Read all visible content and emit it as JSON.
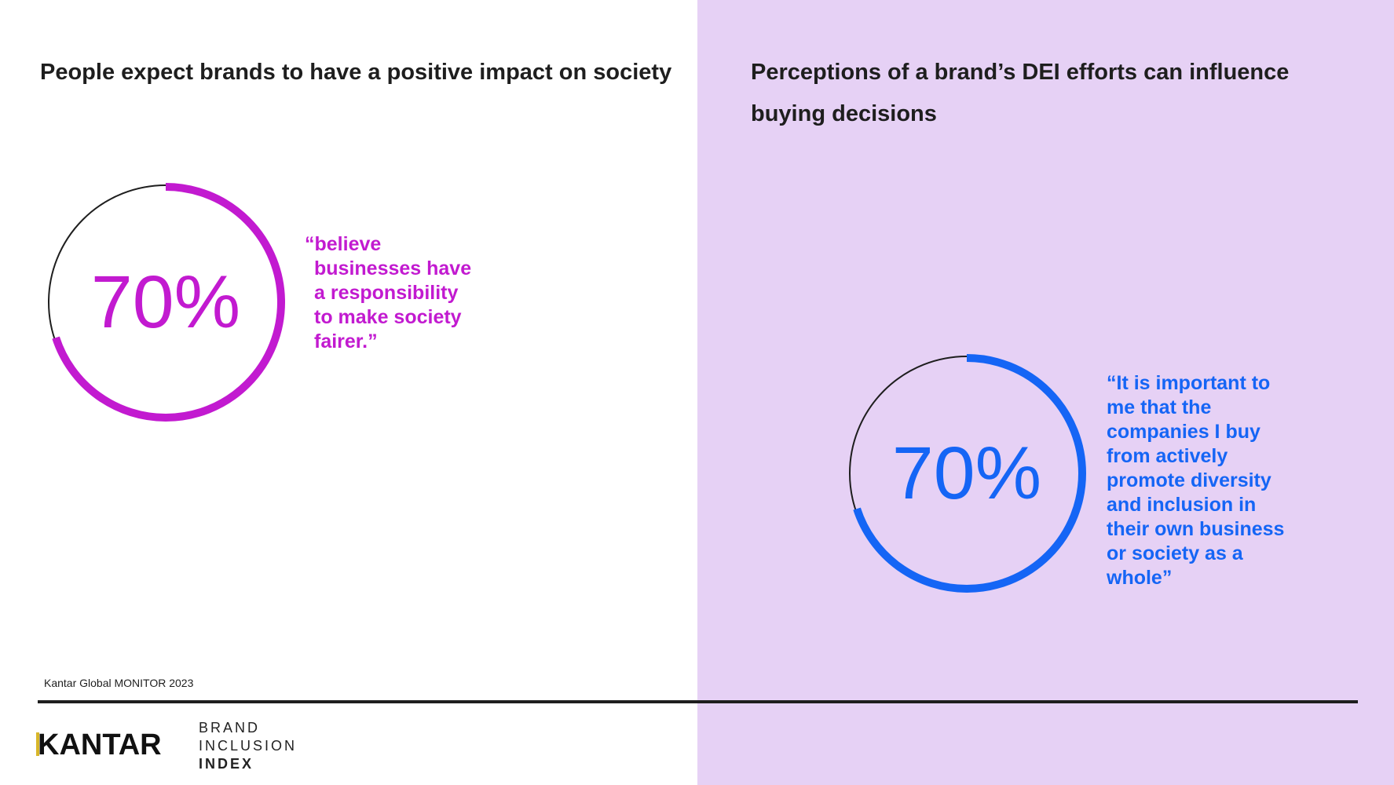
{
  "left": {
    "heading": "People expect brands to have a positive impact on society",
    "stat": {
      "value": "70%",
      "fraction": 0.7,
      "color": "#c21ad0"
    },
    "quote_lines": [
      "“believe",
      "businesses have",
      "a responsibility",
      "to make society",
      "fairer.”"
    ]
  },
  "right": {
    "background": "#e6d1f5",
    "heading": "Perceptions of a brand’s DEI efforts can influence buying decisions",
    "stat": {
      "value": "70%",
      "fraction": 0.7,
      "color": "#1565f5"
    },
    "quote_lines": [
      "“It is important to",
      "me that the",
      "companies I buy",
      "from actively",
      "promote diversity",
      "and inclusion in",
      "their own business",
      "or society as a",
      "whole”"
    ]
  },
  "footer": {
    "source": "Kantar Global MONITOR 2023",
    "logo": "KANTAR",
    "subbrand": [
      "BRAND",
      "INCLUSION",
      "INDEX"
    ]
  }
}
